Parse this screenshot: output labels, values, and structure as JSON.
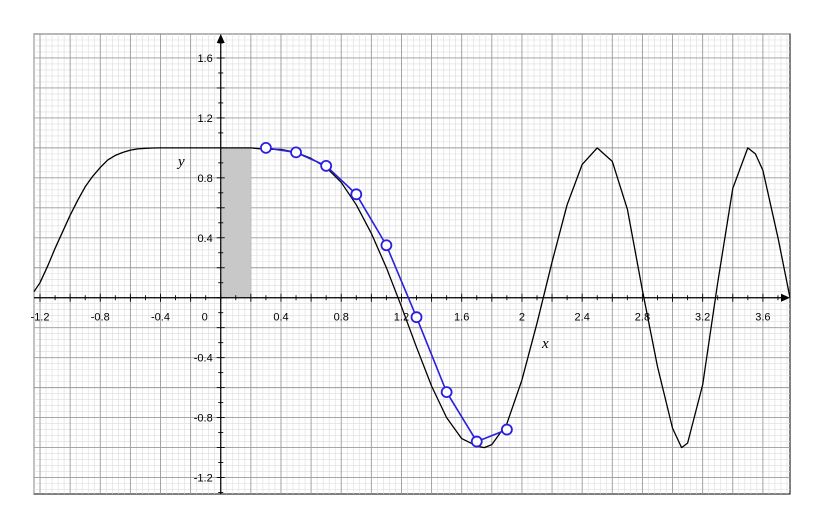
{
  "chart_data": {
    "type": "line",
    "title": "",
    "xlabel": "x",
    "ylabel": "y",
    "xlim": [
      -1.24,
      3.78
    ],
    "ylim": [
      -1.31,
      1.76
    ],
    "x_ticks": [
      {
        "value": -1.2,
        "label": "-1.2"
      },
      {
        "value": -0.8,
        "label": "-0.8"
      },
      {
        "value": -0.4,
        "label": "-0.4"
      },
      {
        "value": 0,
        "label": "0"
      },
      {
        "value": 0.4,
        "label": "0.4"
      },
      {
        "value": 0.8,
        "label": "0.8"
      },
      {
        "value": 1.2,
        "label": "1.2"
      },
      {
        "value": 1.6,
        "label": "1.6"
      },
      {
        "value": 2,
        "label": "2"
      },
      {
        "value": 2.4,
        "label": "2.4"
      },
      {
        "value": 2.8,
        "label": "2.8"
      },
      {
        "value": 3.2,
        "label": "3.2"
      },
      {
        "value": 3.6,
        "label": "3.6"
      }
    ],
    "y_ticks": [
      {
        "value": 1.6,
        "label": "1.6"
      },
      {
        "value": 1.2,
        "label": "1.2"
      },
      {
        "value": 0.8,
        "label": "0.8"
      },
      {
        "value": 0.4,
        "label": "0.4"
      },
      {
        "value": -0.4,
        "label": "-0.4"
      },
      {
        "value": -0.8,
        "label": "-0.8"
      },
      {
        "value": -1.2,
        "label": "-1.2"
      }
    ],
    "grid": true,
    "legend": "none",
    "curve": {
      "x": [
        -1.24,
        -1.2,
        -1.15,
        -1.1,
        -1.05,
        -1.0,
        -0.95,
        -0.9,
        -0.85,
        -0.8,
        -0.75,
        -0.7,
        -0.65,
        -0.6,
        -0.55,
        -0.5,
        -0.45,
        -0.4,
        -0.35,
        -0.3,
        -0.25,
        -0.2,
        -0.15,
        -0.1,
        0.0,
        0.1,
        0.2,
        0.3,
        0.4,
        0.5,
        0.6,
        0.7,
        0.8,
        0.9,
        1.0,
        1.1,
        1.2,
        1.3,
        1.4,
        1.5,
        1.6,
        1.7,
        1.75,
        1.8,
        1.9,
        2.0,
        2.1,
        2.2,
        2.3,
        2.4,
        2.5,
        2.6,
        2.7,
        2.8,
        2.9,
        3.0,
        3.06,
        3.1,
        3.2,
        3.3,
        3.4,
        3.5,
        3.55,
        3.6,
        3.7,
        3.78
      ],
      "y": [
        0.04,
        0.1,
        0.21,
        0.33,
        0.44,
        0.55,
        0.65,
        0.74,
        0.81,
        0.87,
        0.92,
        0.95,
        0.97,
        0.985,
        0.993,
        0.997,
        0.999,
        1.0,
        1.0,
        1.0,
        1.0,
        1.0,
        1.0,
        1.0,
        1.0,
        1.0,
        1.0,
        0.99,
        0.99,
        0.97,
        0.93,
        0.87,
        0.77,
        0.62,
        0.43,
        0.2,
        -0.06,
        -0.33,
        -0.59,
        -0.8,
        -0.94,
        -0.99,
        -1.0,
        -0.98,
        -0.84,
        -0.55,
        -0.17,
        0.24,
        0.62,
        0.89,
        1.0,
        0.91,
        0.59,
        0.05,
        -0.46,
        -0.87,
        -1.0,
        -0.97,
        -0.58,
        0.1,
        0.73,
        1.0,
        0.96,
        0.85,
        0.4,
        0.0
      ],
      "color": "#000000"
    },
    "series": [
      {
        "x": [
          0.3,
          0.5,
          0.7,
          0.9,
          1.1,
          1.3,
          1.5,
          1.7,
          1.9
        ],
        "y": [
          1.0,
          0.97,
          0.88,
          0.69,
          0.35,
          -0.13,
          -0.63,
          -0.96,
          -0.88
        ],
        "color": "#2a1fe0",
        "markers": "open-circle"
      }
    ],
    "shaded_region": {
      "x_from": 0,
      "x_to": 0.2,
      "y_from": 0,
      "y_to": 1.0,
      "color": "#c8c8c8"
    }
  }
}
